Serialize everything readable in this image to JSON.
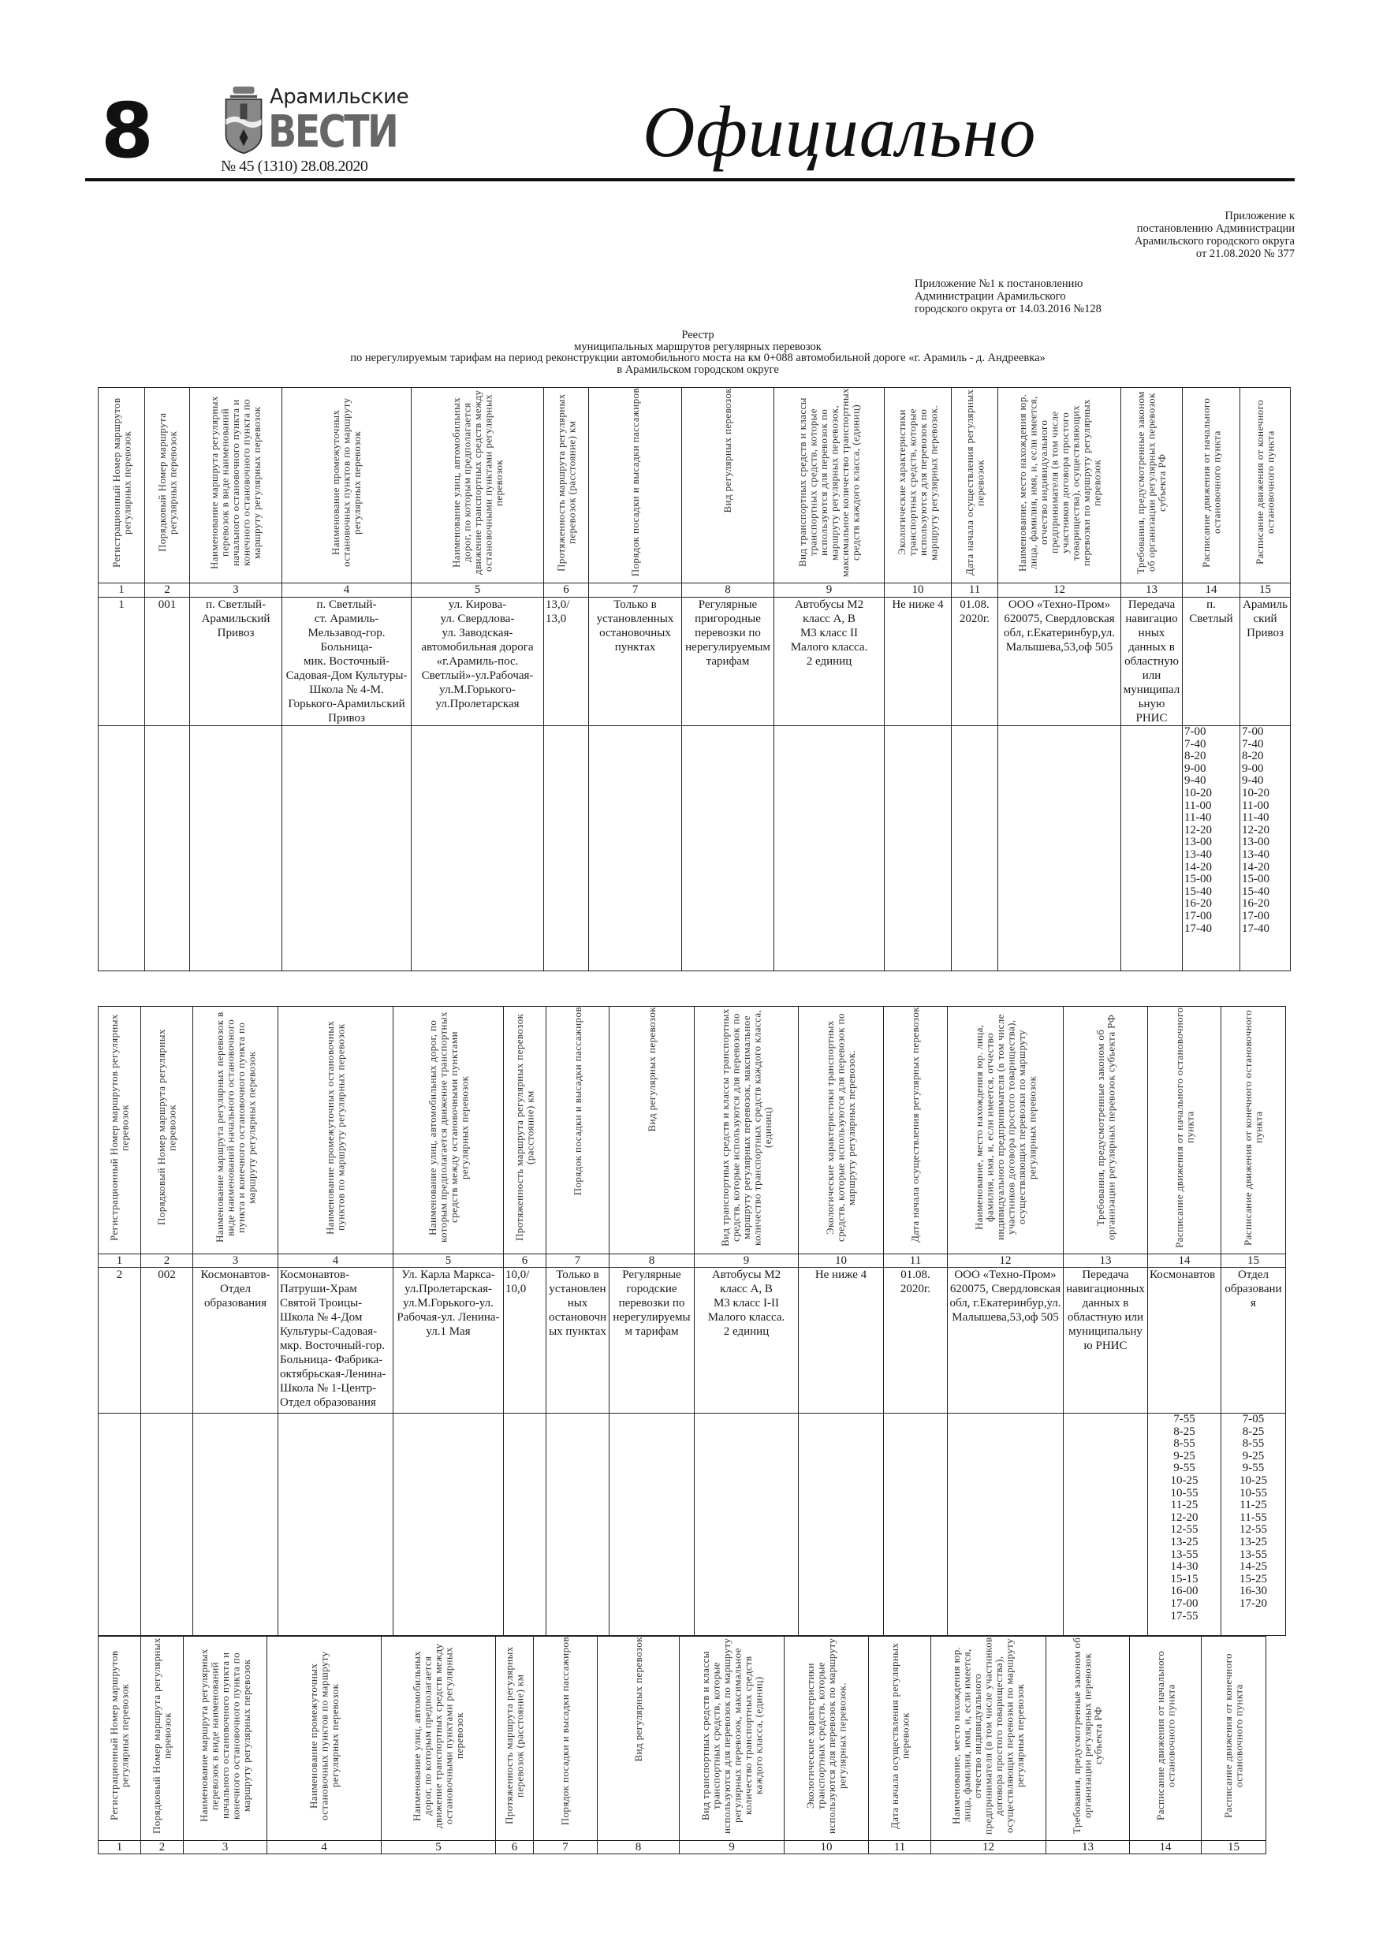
{
  "masthead": {
    "page_number": "8",
    "logo_line1": "Арамильские",
    "logo_line2": "ВЕСТИ",
    "issue": "№ 45 (1310) 28.08.2020",
    "section_title": "Официально"
  },
  "appendix1": "Приложение к\nпостановлению Администрации\nАрамильского городского округа\nот 21.08.2020 № 377",
  "appendix2": "Приложение №1 к постановлению\nАдминистрации Арамильского\nгородского округа от 14.03.2016 №128",
  "registry_title": "Реестр\nмуниципальных маршрутов регулярных перевозок\nпо нерегулируемым тарифам на период реконструкции автомобильного моста на км 0+088 автомобильной дороге «г. Арамиль -        д. Андреевка»\nв Арамильском городском округе",
  "headers": [
    "Регистрационный Номер маршрутов регулярных перевозок",
    "Порядковый Номер маршрута регулярных перевозок",
    "Наименование маршрута регулярных перевозок в виде наименований начального остановочного пункта и конечного остановочного пункта по маршруту регулярных перевозок",
    "Наименование промежуточных остановочных пунктов по маршруту регулярных перевозок",
    "Наименование улиц, автомобильных дорог, по которым предполагается движение транспортных средств между остановочными пунктами регулярных перевозок",
    "Протяженность маршрута регулярных перевозок (расстояние) км",
    "Порядок посадки и высадки пассажиров",
    "Вид регулярных перевозок",
    "Вид транспортных средств и классы транспортных средств, которые используются для перевозок по маршруту регулярных перевозок, максимальное количество транспортных средств каждого класса, (единиц)",
    "Экологические характеристики транспортных средств, которые используются для перевозок по маршруту регулярных перевозок.",
    "Дата начала осуществления регулярных перевозок",
    "Наименование, место нахождения юр. лица, фамилия, имя, и, если имеется, отчество индивидуального предпринимателя (в том числе участников договора простого товарищества), осуществляющих перевозки по маршруту регулярных перевозок",
    "Требования, предусмотренные законом об организации регулярных перевозок субъекта РФ",
    "Расписание движения от начального остановочного пункта",
    "Расписание движения от конечного остановочного пункта"
  ],
  "column_numbers": [
    "1",
    "2",
    "3",
    "4",
    "5",
    "6",
    "7",
    "8",
    "9",
    "10",
    "11",
    "12",
    "13",
    "14",
    "15"
  ],
  "routes": [
    {
      "cells": [
        "1",
        "001",
        "п. Светлый-\nАрамильский\nПривоз",
        "п. Светлый-\nст. Арамиль-\nМельзавод-гор. Больница-\nмик. Восточный-\nСадовая-Дом Культуры- Школа № 4-М. Горького-Арамильский Привоз",
        "ул. Кирова-\nул. Свердлова-\nул. Заводская-автомобильная дорога «г.Арамиль-пос. Светлый»-ул.Рабочая-ул.М.Горького-ул.Пролетарская",
        "13,0/\n13,0",
        "Только в установленных остановочных пунктах",
        "Регулярные пригородные перевозки по нерегулируемым тарифам",
        "Автобусы М2\nкласс А, В\nМ3 класс II\nМалого класса.\n2 единиц",
        "Не ниже 4",
        "01.08.\n2020г.",
        "ООО «Техно-Пром» 620075, Свердловская обл, г.Екатеринбур,ул. Малышева,53,оф 505",
        "Передача навигационных данных в областную или муниципальную РНИС",
        "п. Светлый",
        "Арамильский Привоз"
      ],
      "schedule_from_start": [
        "7-00",
        "7-40",
        "8-20",
        "9-00",
        "9-40",
        "10-20",
        "11-00",
        "11-40",
        "12-20",
        "13-00",
        "13-40",
        "14-20",
        "15-00",
        "15-40",
        "16-20",
        "17-00",
        "17-40"
      ],
      "schedule_from_end": [
        "7-00",
        "7-40",
        "8-20",
        "9-00",
        "9-40",
        "10-20",
        "11-00",
        "11-40",
        "12-20",
        "13-00",
        "13-40",
        "14-20",
        "15-00",
        "15-40",
        "16-20",
        "17-00",
        "17-40"
      ]
    },
    {
      "cells": [
        "2",
        "002",
        "Космонавтов-Отдел образования",
        "Космонавтов-Патруши-Храм Святой Троицы-Школа № 4-Дом Культуры-Садовая-мкр. Восточный-гор. Больница- Фабрика-октябрьская-Ленина-Школа № 1-Центр-Отдел образования",
        "Ул. Карла Маркса-ул.Пролетарская-ул.М.Горького-ул. Рабочая-ул. Ленина-ул.1 Мая",
        "10,0/\n10,0",
        "Только в установленных остановочных пунктах",
        "Регулярные городские перевозки по нерегулируемым тарифам",
        "Автобусы М2\nкласс А, В\nМ3 класс I-II\nМалого класса.\n2 единиц",
        "Не ниже 4",
        "01.08.\n2020г.",
        "ООО «Техно-Пром» 620075, Свердловская обл, г.Екатеринбур,ул. Малышева,53,оф 505",
        "Передача навигационных данных в областную или муниципальную РНИС",
        "Космонавтов",
        "Отдел образования"
      ],
      "schedule_from_start": [
        "7-55",
        "8-25",
        "8-55",
        "9-25",
        "9-55",
        "10-25",
        "10-55",
        "11-25",
        "12-20",
        "12-55",
        "13-25",
        "13-55",
        "14-30",
        "15-15",
        "16-00",
        "17-00",
        "17-55"
      ],
      "schedule_from_end": [
        "7-05",
        "8-25",
        "8-55",
        "9-25",
        "9-55",
        "10-25",
        "10-55",
        "11-25",
        "11-55",
        "12-55",
        "13-25",
        "13-55",
        "14-25",
        "15-25",
        "16-30",
        "17-20"
      ]
    }
  ]
}
